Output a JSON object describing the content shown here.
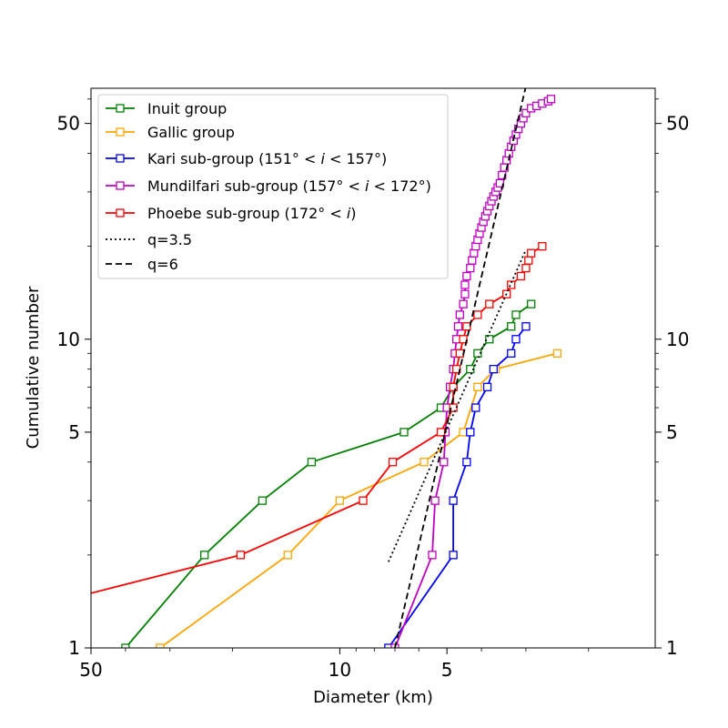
{
  "chart_data": {
    "type": "line",
    "xlabel": "Diameter (km)",
    "ylabel": "Cumulative number",
    "x_scale": "log",
    "y_scale": "log",
    "x_reversed": true,
    "xlim": [
      50,
      1.3
    ],
    "ylim": [
      1,
      65
    ],
    "x_ticks": [
      {
        "value": 50,
        "label": "50"
      },
      {
        "value": 10,
        "label": "10"
      },
      {
        "value": 5,
        "label": "5"
      }
    ],
    "y_ticks": [
      {
        "value": 1,
        "label": "1"
      },
      {
        "value": 5,
        "label": "5"
      },
      {
        "value": 10,
        "label": "10"
      },
      {
        "value": 50,
        "label": "50"
      }
    ],
    "legend_position": "upper-left",
    "series": [
      {
        "name": "Inuit group",
        "color": "#008000",
        "marker": "square-open",
        "points": [
          [
            40,
            1
          ],
          [
            24,
            2
          ],
          [
            16.5,
            3
          ],
          [
            12,
            4
          ],
          [
            6.6,
            5
          ],
          [
            5.2,
            6
          ],
          [
            4.8,
            7
          ],
          [
            4.3,
            8
          ],
          [
            4.1,
            9
          ],
          [
            3.8,
            10
          ],
          [
            3.3,
            11
          ],
          [
            3.2,
            12
          ],
          [
            2.9,
            13
          ]
        ]
      },
      {
        "name": "Gallic group",
        "color": "#FFA500",
        "marker": "square-open",
        "points": [
          [
            32,
            1
          ],
          [
            14,
            2
          ],
          [
            10,
            3
          ],
          [
            5.8,
            4
          ],
          [
            4.5,
            5
          ],
          [
            4.1,
            7
          ],
          [
            3.65,
            8
          ],
          [
            2.45,
            9
          ]
        ]
      },
      {
        "name": "Kari sub-group (151° < i < 157°)",
        "color": "#0000FF",
        "marker": "square-open",
        "points": [
          [
            7.3,
            1
          ],
          [
            4.8,
            2
          ],
          [
            4.8,
            3
          ],
          [
            4.4,
            4
          ],
          [
            4.3,
            5
          ],
          [
            4.15,
            6
          ],
          [
            3.85,
            7
          ],
          [
            3.7,
            8
          ],
          [
            3.3,
            9
          ],
          [
            3.2,
            10
          ],
          [
            3.0,
            11
          ]
        ]
      },
      {
        "name": "Mundilfari sub-group (157° < i < 172°)",
        "color": "#C000C0",
        "marker": "square-open",
        "points": [
          [
            7.0,
            1
          ],
          [
            5.5,
            2
          ],
          [
            5.4,
            3
          ],
          [
            5.1,
            4
          ],
          [
            5.05,
            5
          ],
          [
            5.0,
            6
          ],
          [
            4.9,
            7
          ],
          [
            4.8,
            8
          ],
          [
            4.75,
            9
          ],
          [
            4.7,
            10
          ],
          [
            4.65,
            11
          ],
          [
            4.6,
            12
          ],
          [
            4.5,
            13
          ],
          [
            4.45,
            14
          ],
          [
            4.45,
            15
          ],
          [
            4.4,
            16
          ],
          [
            4.3,
            17
          ],
          [
            4.25,
            18
          ],
          [
            4.2,
            19
          ],
          [
            4.15,
            20
          ],
          [
            4.1,
            21
          ],
          [
            4.05,
            22
          ],
          [
            4.0,
            23
          ],
          [
            3.95,
            24
          ],
          [
            3.9,
            25
          ],
          [
            3.85,
            26
          ],
          [
            3.8,
            27
          ],
          [
            3.75,
            28
          ],
          [
            3.7,
            29
          ],
          [
            3.65,
            30
          ],
          [
            3.6,
            31
          ],
          [
            3.55,
            32
          ],
          [
            3.5,
            34
          ],
          [
            3.45,
            36
          ],
          [
            3.4,
            38
          ],
          [
            3.35,
            40
          ],
          [
            3.3,
            42
          ],
          [
            3.25,
            44
          ],
          [
            3.2,
            46
          ],
          [
            3.15,
            48
          ],
          [
            3.1,
            50
          ],
          [
            3.05,
            52
          ],
          [
            3.0,
            54
          ],
          [
            2.9,
            56
          ],
          [
            2.8,
            57
          ],
          [
            2.7,
            58
          ],
          [
            2.6,
            59
          ],
          [
            2.55,
            60
          ]
        ]
      },
      {
        "name": "Phoebe sub-group (172° < i)",
        "color": "#FF0000",
        "marker": "square-open",
        "points": [
          [
            200,
            1
          ],
          [
            19,
            2
          ],
          [
            8.6,
            3
          ],
          [
            7.1,
            4
          ],
          [
            5.2,
            5
          ],
          [
            4.8,
            6
          ],
          [
            4.8,
            7
          ],
          [
            4.7,
            8
          ],
          [
            4.6,
            9
          ],
          [
            4.5,
            10
          ],
          [
            4.4,
            11
          ],
          [
            4.1,
            12
          ],
          [
            3.8,
            13
          ],
          [
            3.4,
            14
          ],
          [
            3.3,
            15
          ],
          [
            3.1,
            16
          ],
          [
            3.0,
            17
          ],
          [
            2.95,
            18
          ],
          [
            2.9,
            19
          ],
          [
            2.7,
            20
          ]
        ]
      },
      {
        "name": "q=3.5",
        "color": "#000000",
        "dash": "dotted",
        "points": [
          [
            7.3,
            1.9
          ],
          [
            3.0,
            19.5
          ]
        ]
      },
      {
        "name": "q=6",
        "color": "#000000",
        "dash": "dashed",
        "points": [
          [
            7.0,
            1
          ],
          [
            3.0,
            66
          ]
        ]
      }
    ]
  },
  "legend": {
    "items": [
      {
        "label": "Inuit group",
        "color": "#008000",
        "style": "marker"
      },
      {
        "label": "Gallic group",
        "color": "#FFA500",
        "style": "marker"
      },
      {
        "label_parts": [
          "Kari sub-group (151° < ",
          "i",
          " < 157°)"
        ],
        "color": "#0000FF",
        "style": "marker"
      },
      {
        "label_parts": [
          "Mundilfari sub-group (157° < ",
          "i",
          " < 172°)"
        ],
        "color": "#C000C0",
        "style": "marker"
      },
      {
        "label_parts": [
          "Phoebe sub-group (172° < ",
          "i",
          ")"
        ],
        "color": "#FF0000",
        "style": "marker"
      },
      {
        "label": "q=3.5",
        "color": "#000000",
        "style": "dotted"
      },
      {
        "label": "q=6",
        "color": "#000000",
        "style": "dashed"
      }
    ]
  }
}
